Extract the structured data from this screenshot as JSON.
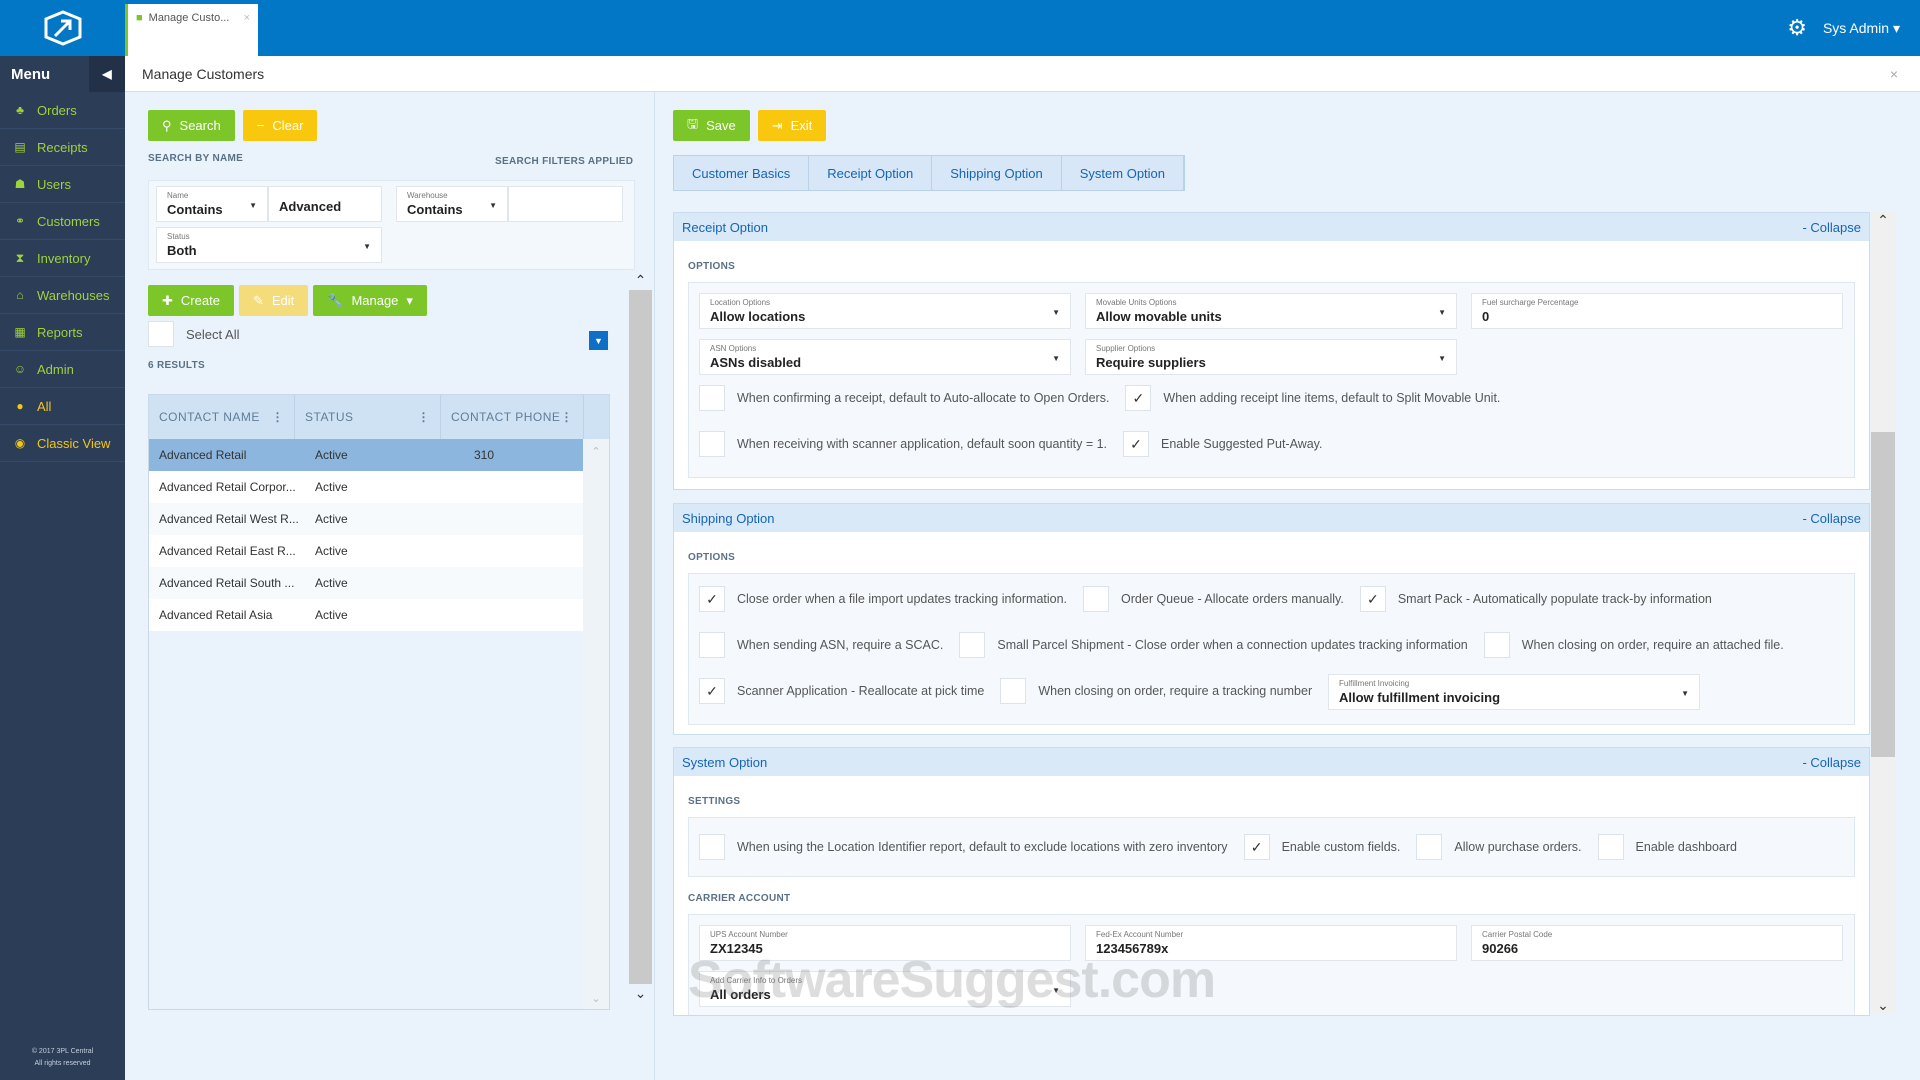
{
  "app": {
    "tab_title": "Manage Custo...",
    "user": "Sys Admin",
    "page_title": "Manage Customers",
    "copyright_1": "© 2017 3PL Central",
    "copyright_2": "All rights reserved"
  },
  "sidebar": {
    "title": "Menu",
    "items": [
      {
        "label": "Orders",
        "icon": "sitemap-icon"
      },
      {
        "label": "Receipts",
        "icon": "document-icon"
      },
      {
        "label": "Users",
        "icon": "users-icon"
      },
      {
        "label": "Customers",
        "icon": "handshake-icon"
      },
      {
        "label": "Inventory",
        "icon": "hourglass-icon"
      },
      {
        "label": "Warehouses",
        "icon": "home-icon"
      },
      {
        "label": "Reports",
        "icon": "report-icon"
      },
      {
        "label": "Admin",
        "icon": "user-icon"
      },
      {
        "label": "All",
        "icon": "globe-icon"
      },
      {
        "label": "Classic View",
        "icon": "eye-icon"
      }
    ]
  },
  "search": {
    "search_label": "Search",
    "clear_label": "Clear",
    "by_name": "SEARCH BY NAME",
    "filters_applied": "SEARCH FILTERS APPLIED",
    "name_label": "Name",
    "name_op": "Contains",
    "name_value": "Advanced",
    "warehouse_label": "Warehouse",
    "warehouse_op": "Contains",
    "warehouse_value": "",
    "status_label": "Status",
    "status_value": "Both"
  },
  "actions": {
    "create": "Create",
    "edit": "Edit",
    "manage": "Manage",
    "select_all": "Select All",
    "results": "6 RESULTS"
  },
  "table": {
    "columns": [
      "CONTACT NAME",
      "STATUS",
      "CONTACT PHONE"
    ],
    "rows": [
      [
        "Advanced Retail",
        "Active",
        "310"
      ],
      [
        "Advanced Retail Corpor...",
        "Active",
        ""
      ],
      [
        "Advanced Retail West R...",
        "Active",
        ""
      ],
      [
        "Advanced Retail East R...",
        "Active",
        ""
      ],
      [
        "Advanced Retail South ...",
        "Active",
        ""
      ],
      [
        "Advanced Retail Asia",
        "Active",
        ""
      ]
    ]
  },
  "right": {
    "save": "Save",
    "exit": "Exit",
    "tabs": [
      "Customer Basics",
      "Receipt Option",
      "Shipping Option",
      "System Option"
    ],
    "collapse": "- Collapse"
  },
  "receipt": {
    "title": "Receipt Option",
    "options_label": "OPTIONS",
    "location_label": "Location Options",
    "location_value": "Allow locations",
    "movable_label": "Movable Units Options",
    "movable_value": "Allow movable units",
    "fuel_label": "Fuel surcharge Percentage",
    "fuel_value": "0",
    "asn_label": "ASN Options",
    "asn_value": "ASNs disabled",
    "supplier_label": "Supplier Options",
    "supplier_value": "Require suppliers",
    "checks": [
      {
        "label": "When confirming a receipt, default to Auto-allocate to Open Orders.",
        "checked": false
      },
      {
        "label": "When adding receipt line items, default to Split Movable Unit.",
        "checked": true
      },
      {
        "label": "When receiving with scanner application, default soon quantity = 1.",
        "checked": false
      },
      {
        "label": "Enable Suggested Put-Away.",
        "checked": true
      }
    ]
  },
  "shipping": {
    "title": "Shipping Option",
    "options_label": "OPTIONS",
    "checks": [
      {
        "label": "Close order when a file import updates tracking information.",
        "checked": true
      },
      {
        "label": "Order Queue - Allocate orders manually.",
        "checked": false
      },
      {
        "label": "Smart Pack - Automatically populate track-by information",
        "checked": true
      },
      {
        "label": "When sending ASN, require a SCAC.",
        "checked": false
      },
      {
        "label": "Small Parcel Shipment - Close order when a connection updates tracking information",
        "checked": false
      },
      {
        "label": "When closing on order, require an attached file.",
        "checked": false
      },
      {
        "label": "Scanner Application - Reallocate at pick time",
        "checked": true
      },
      {
        "label": "When closing on order, require a tracking number",
        "checked": false
      }
    ],
    "invoicing_label": "Fulfillment Invoicing",
    "invoicing_value": "Allow fulfillment invoicing"
  },
  "system": {
    "title": "System Option",
    "settings_label": "SETTINGS",
    "checks": [
      {
        "label": "When using the Location Identifier report, default to exclude locations with zero inventory",
        "checked": false
      },
      {
        "label": "Enable custom fields.",
        "checked": true
      },
      {
        "label": "Allow purchase orders.",
        "checked": false
      },
      {
        "label": "Enable dashboard",
        "checked": false
      }
    ],
    "carrier_label": "CARRIER ACCOUNT",
    "ups_label": "UPS Account Number",
    "ups_value": "ZX12345",
    "fedex_label": "Fed-Ex Account Number",
    "fedex_value": "123456789x",
    "postal_label": "Carrier Postal Code",
    "postal_value": "90266",
    "carrier_info_label": "Add Carrier Info to Orders",
    "carrier_info_value": "All orders"
  },
  "watermark": "SoftwareSuggest.com",
  "colors": {
    "topbar": "#0277c6",
    "sidebar": "#2b3d57",
    "green": "#7cc62a",
    "yellow": "#f9c80e",
    "link": "#1565b5"
  }
}
